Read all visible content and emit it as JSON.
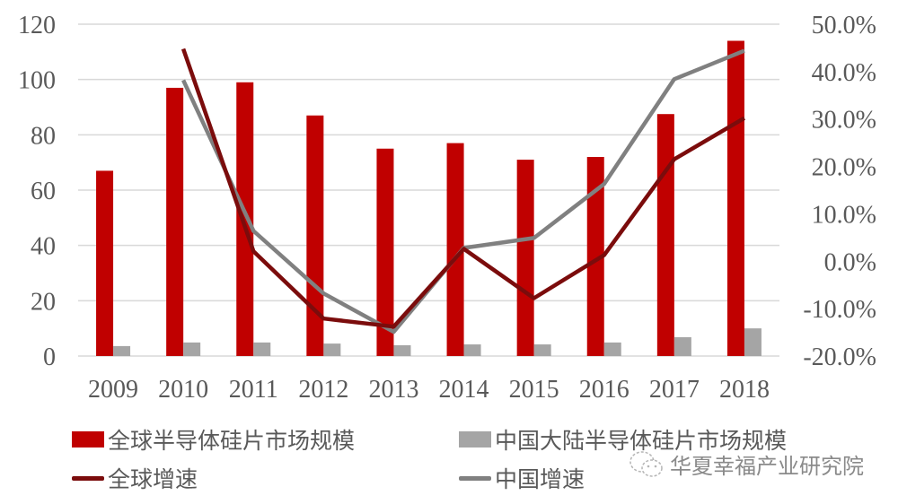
{
  "chart_data": {
    "type": "bar+line",
    "title": "",
    "categories": [
      "2009",
      "2010",
      "2011",
      "2012",
      "2013",
      "2014",
      "2015",
      "2016",
      "2017",
      "2018"
    ],
    "left_axis": {
      "min": 0,
      "max": 120,
      "ticks": [
        "0",
        "20",
        "40",
        "60",
        "80",
        "100",
        "120"
      ],
      "label": ""
    },
    "right_axis": {
      "min": -20,
      "max": 50,
      "ticks": [
        "-20.0%",
        "-10.0%",
        "0.0%",
        "10.0%",
        "20.0%",
        "30.0%",
        "40.0%",
        "50.0%"
      ],
      "label": ""
    },
    "grid": true,
    "legend_position": "bottom",
    "series": [
      {
        "name": "全球半导体硅片市场规模",
        "type": "bar",
        "axis": "left",
        "color": "#C00000",
        "values": [
          67,
          97,
          99,
          87,
          75,
          77,
          71,
          72,
          87.5,
          114
        ]
      },
      {
        "name": "中国大陆半导体硅片市场规模",
        "type": "bar",
        "axis": "left",
        "color": "#A5A5A5",
        "values": [
          3.6,
          4.9,
          4.9,
          4.5,
          3.9,
          4.2,
          4.2,
          4.9,
          6.8,
          10
        ]
      },
      {
        "name": "全球增速",
        "type": "line",
        "axis": "right",
        "color": "#7B0C0C",
        "values": [
          null,
          44.8,
          2.1,
          -12.1,
          -13.8,
          2.6,
          -7.8,
          1.3,
          21.5,
          30.2
        ]
      },
      {
        "name": "中国增速",
        "type": "line",
        "axis": "right",
        "color": "#808080",
        "values": [
          null,
          38.2,
          6.4,
          -6.8,
          -14.9,
          2.8,
          4.9,
          16.3,
          38.4,
          44.4
        ]
      }
    ]
  },
  "legend": {
    "items": [
      {
        "label": "全球半导体硅片市场规模",
        "kind": "box",
        "color": "#C00000"
      },
      {
        "label": "中国大陆半导体硅片市场规模",
        "kind": "box",
        "color": "#A5A5A5"
      },
      {
        "label": "全球增速",
        "kind": "line",
        "color": "#7B0C0C"
      },
      {
        "label": "中国增速",
        "kind": "line",
        "color": "#808080"
      }
    ]
  },
  "watermark": {
    "icon": "wechat-icon",
    "text": "华夏幸福产业研究院"
  }
}
